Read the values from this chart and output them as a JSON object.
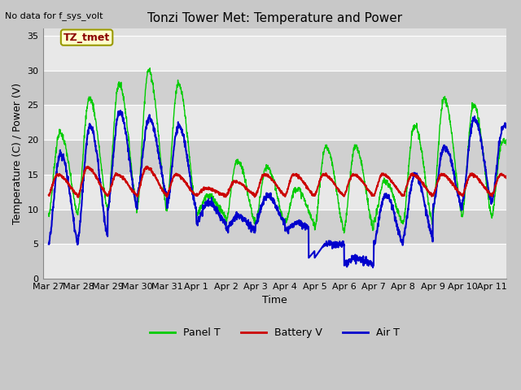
{
  "title": "Tonzi Tower Met: Temperature and Power",
  "top_left_text": "No data for f_sys_volt",
  "xlabel": "Time",
  "ylabel": "Temperature (C) / Power (V)",
  "ylim": [
    0,
    36
  ],
  "yticks": [
    0,
    5,
    10,
    15,
    20,
    25,
    30,
    35
  ],
  "x_tick_labels": [
    "Mar 27",
    "Mar 28",
    "Mar 29",
    "Mar 30",
    "Mar 31",
    "Apr 1",
    "Apr 2",
    "Apr 3",
    "Apr 4",
    "Apr 5",
    "Apr 6",
    "Apr 7",
    "Apr 8",
    "Apr 9",
    "Apr 10",
    "Apr 11"
  ],
  "x_tick_positions": [
    0,
    1,
    2,
    3,
    4,
    5,
    6,
    7,
    8,
    9,
    10,
    11,
    12,
    13,
    14,
    15
  ],
  "xlim": [
    -0.2,
    15.5
  ],
  "legend_entries": [
    "Panel T",
    "Battery V",
    "Air T"
  ],
  "line_colors": [
    "#00cc00",
    "#cc0000",
    "#0000cc"
  ],
  "annotation_text": "TZ_tmet",
  "fig_facecolor": "#c8c8c8",
  "plot_facecolor": "#e0e0e0",
  "band_colors": [
    "#e8e8e8",
    "#d0d0d0"
  ],
  "grid_color": "#ffffff",
  "title_fontsize": 11,
  "label_fontsize": 9,
  "tick_fontsize": 8
}
